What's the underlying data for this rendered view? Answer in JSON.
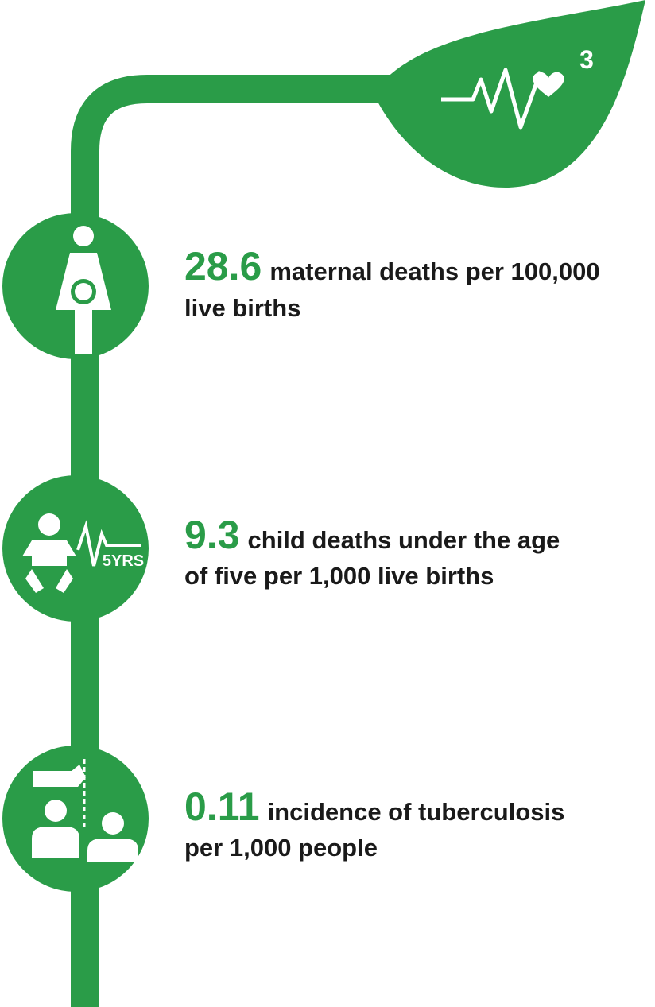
{
  "goal": {
    "number": "3"
  },
  "items": [
    {
      "value": "28.6",
      "lines": [
        "maternal deaths per 100,000",
        "live births"
      ]
    },
    {
      "value": "9.3",
      "lines": [
        "child deaths under the age",
        "of five per 1,000 live births"
      ],
      "icon_text": "5YRS"
    },
    {
      "value": "0.11",
      "lines": [
        "incidence of tuberculosis",
        "per 1,000 people"
      ]
    }
  ]
}
